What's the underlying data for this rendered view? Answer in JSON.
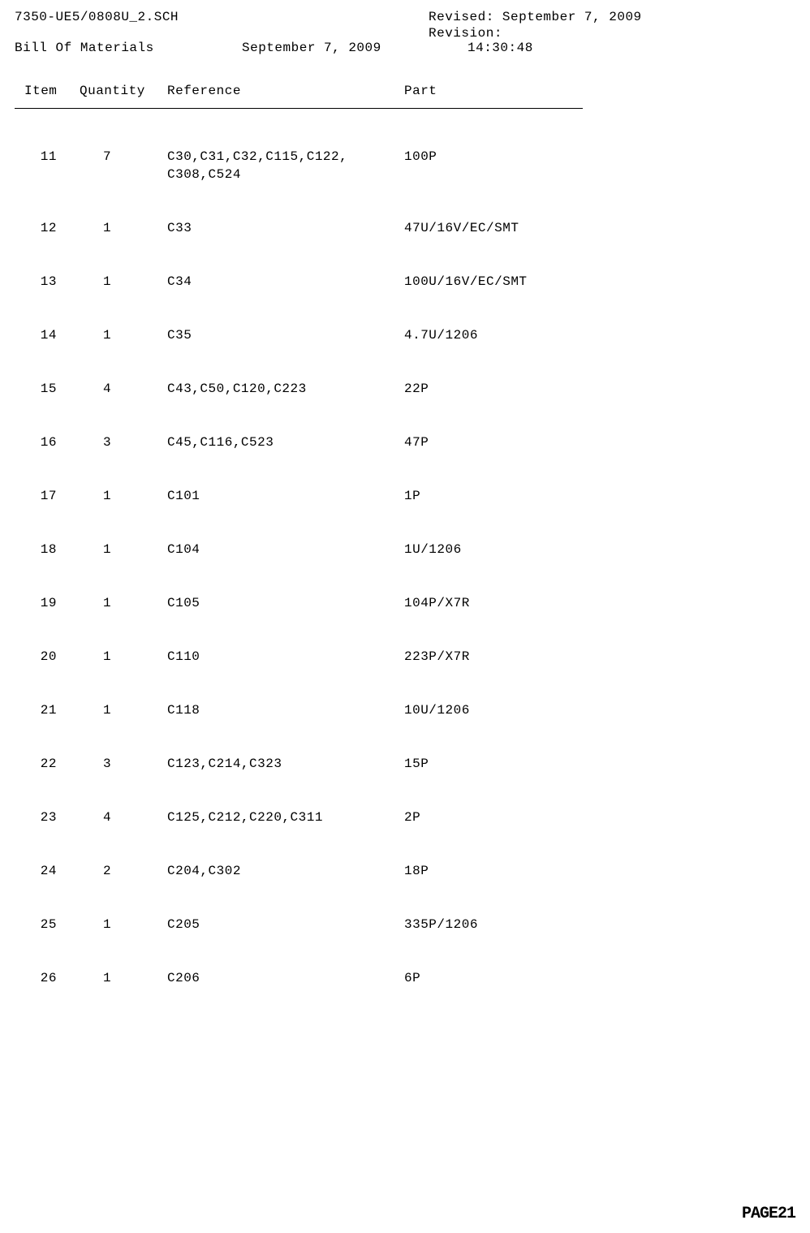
{
  "header": {
    "filename": "7350-UE5/0808U_2.SCH",
    "revised_label": "Revised: September  7, 2009",
    "revision_label": "Revision:",
    "bom_label": "Bill Of Materials",
    "date": "September  7, 2009",
    "time": "14:30:48"
  },
  "columns": {
    "item": "Item",
    "quantity": "Quantity",
    "reference": "Reference",
    "part": "Part"
  },
  "rows": [
    {
      "item": "11",
      "quantity": "7",
      "reference": "C30,C31,C32,C115,C122,",
      "reference2": "C308,C524",
      "part": "100P"
    },
    {
      "item": "12",
      "quantity": "1",
      "reference": "C33",
      "part": "47U/16V/EC/SMT"
    },
    {
      "item": "13",
      "quantity": "1",
      "reference": "C34",
      "part": "100U/16V/EC/SMT"
    },
    {
      "item": "14",
      "quantity": "1",
      "reference": "C35",
      "part": "4.7U/1206"
    },
    {
      "item": "15",
      "quantity": "4",
      "reference": "C43,C50,C120,C223",
      "part": "22P"
    },
    {
      "item": "16",
      "quantity": "3",
      "reference": "C45,C116,C523",
      "part": "47P"
    },
    {
      "item": "17",
      "quantity": "1",
      "reference": "C101",
      "part": "1P"
    },
    {
      "item": "18",
      "quantity": "1",
      "reference": "C104",
      "part": "1U/1206"
    },
    {
      "item": "19",
      "quantity": "1",
      "reference": "C105",
      "part": "104P/X7R"
    },
    {
      "item": "20",
      "quantity": "1",
      "reference": "C110",
      "part": "223P/X7R"
    },
    {
      "item": "21",
      "quantity": "1",
      "reference": "C118",
      "part": "10U/1206"
    },
    {
      "item": "22",
      "quantity": "3",
      "reference": "C123,C214,C323",
      "part": "15P"
    },
    {
      "item": "23",
      "quantity": "4",
      "reference": "C125,C212,C220,C311",
      "part": "2P"
    },
    {
      "item": "24",
      "quantity": "2",
      "reference": "C204,C302",
      "part": "18P"
    },
    {
      "item": "25",
      "quantity": "1",
      "reference": "C205",
      "part": "335P/1206"
    },
    {
      "item": "26",
      "quantity": "1",
      "reference": "C206",
      "part": "6P"
    }
  ],
  "page": "PAGE21"
}
